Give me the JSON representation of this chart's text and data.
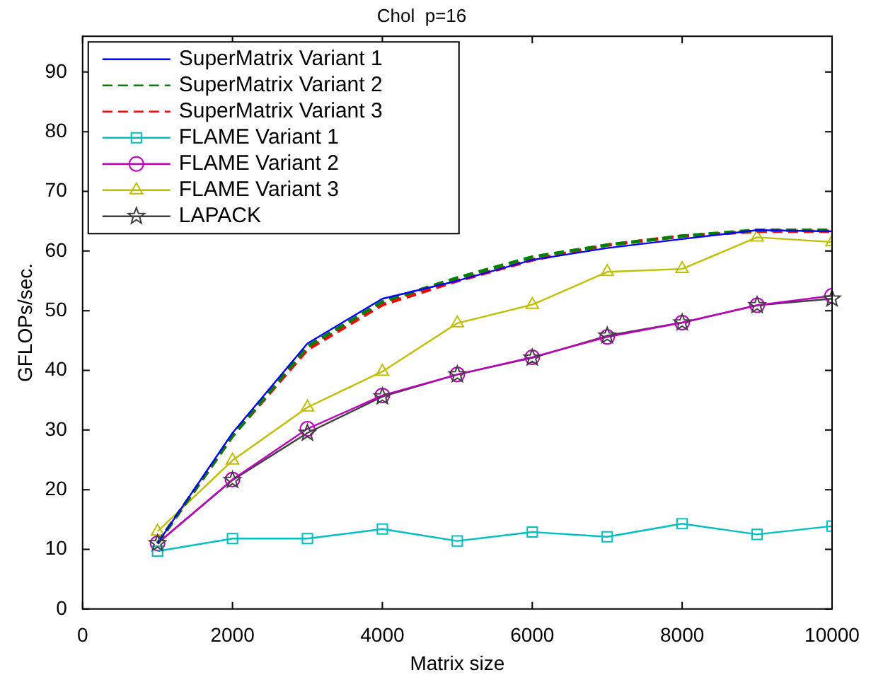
{
  "chart_data": {
    "type": "line",
    "title": "Chol  p=16",
    "xlabel": "Matrix size",
    "ylabel": "GFLOPs/sec.",
    "x": [
      1000,
      2000,
      3000,
      4000,
      5000,
      6000,
      7000,
      8000,
      9000,
      10000
    ],
    "xlim": [
      0,
      10000
    ],
    "xticks": [
      0,
      2000,
      4000,
      6000,
      8000,
      10000
    ],
    "ylim": [
      0,
      96
    ],
    "yticks": [
      0,
      10,
      20,
      30,
      40,
      50,
      60,
      70,
      80,
      90
    ],
    "legend": "top left",
    "series": [
      {
        "name": "SuperMatrix Variant 1",
        "color": "#0000ff",
        "line_style": "solid",
        "marker": "none",
        "values": [
          11,
          29.5,
          44.5,
          52,
          55,
          58.5,
          60.5,
          62,
          63.5,
          63.3
        ]
      },
      {
        "name": "SuperMatrix Variant 2",
        "color": "#008000",
        "line_style": "dashed",
        "marker": "none",
        "values": [
          11,
          29,
          44,
          51.5,
          55.5,
          59,
          61,
          62.5,
          63.5,
          63.5
        ]
      },
      {
        "name": "SuperMatrix Variant 3",
        "color": "#ff0000",
        "line_style": "dashed",
        "marker": "none",
        "values": [
          11,
          29,
          43.5,
          51,
          55,
          58.5,
          61,
          62.5,
          63.3,
          63.3
        ]
      },
      {
        "name": "FLAME Variant 1",
        "color": "#00bfbf",
        "line_style": "solid",
        "marker": "square",
        "values": [
          9.7,
          11.8,
          11.8,
          13.4,
          11.4,
          12.9,
          12.1,
          14.3,
          12.5,
          13.9
        ]
      },
      {
        "name": "FLAME Variant 2",
        "color": "#bf00bf",
        "line_style": "solid",
        "marker": "circle",
        "values": [
          11,
          21.7,
          30.2,
          35.8,
          39.3,
          42.2,
          45.6,
          48,
          50.9,
          52.5
        ]
      },
      {
        "name": "FLAME Variant 3",
        "color": "#bfbf00",
        "line_style": "solid",
        "marker": "triangle",
        "values": [
          13,
          24.9,
          33.8,
          39.8,
          47.9,
          51,
          56.5,
          57,
          62.3,
          61.5
        ]
      },
      {
        "name": "LAPACK",
        "color": "#404040",
        "line_style": "solid",
        "marker": "star",
        "values": [
          11,
          21.6,
          29.5,
          35.6,
          39.3,
          42.1,
          45.8,
          48,
          50.9,
          52
        ]
      }
    ]
  }
}
